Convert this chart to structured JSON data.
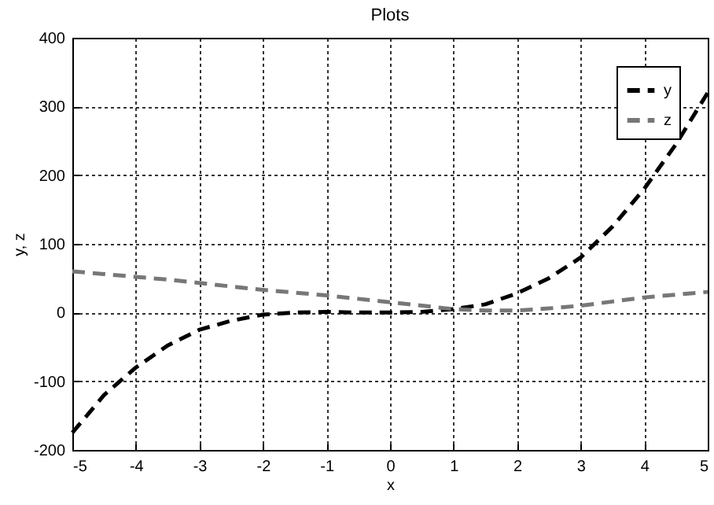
{
  "chart_data": {
    "type": "line",
    "title": "Plots",
    "xlabel": "x",
    "ylabel": "y, z",
    "x": [
      -5,
      -4.5,
      -4,
      -3.5,
      -3,
      -2.5,
      -2,
      -1.5,
      -1,
      -0.5,
      0,
      0.5,
      1,
      1.5,
      2,
      2.5,
      3,
      3.5,
      4,
      4.5,
      5
    ],
    "series": [
      {
        "name": "y",
        "color": "#000000",
        "values": [
          -175,
          -120,
          -80,
          -48,
          -25,
          -12,
          -3,
          0,
          1,
          0,
          0,
          1,
          5,
          12,
          28,
          50,
          80,
          125,
          180,
          245,
          320
        ]
      },
      {
        "name": "z",
        "color": "#777777",
        "values": [
          60,
          56,
          52,
          48,
          43,
          38,
          33,
          29,
          25,
          20,
          15,
          10,
          5,
          3,
          3,
          6,
          10,
          16,
          22,
          26,
          30
        ]
      }
    ],
    "xlim": [
      -5,
      5
    ],
    "xticks": [
      -5,
      -4,
      -3,
      -2,
      -1,
      0,
      1,
      2,
      3,
      4,
      5
    ],
    "ylim": [
      -200,
      400
    ],
    "yticks": [
      -200,
      -100,
      0,
      100,
      200,
      300,
      400
    ],
    "grid": true,
    "legend": "top right",
    "marker": "none",
    "line_style": "dashed"
  }
}
